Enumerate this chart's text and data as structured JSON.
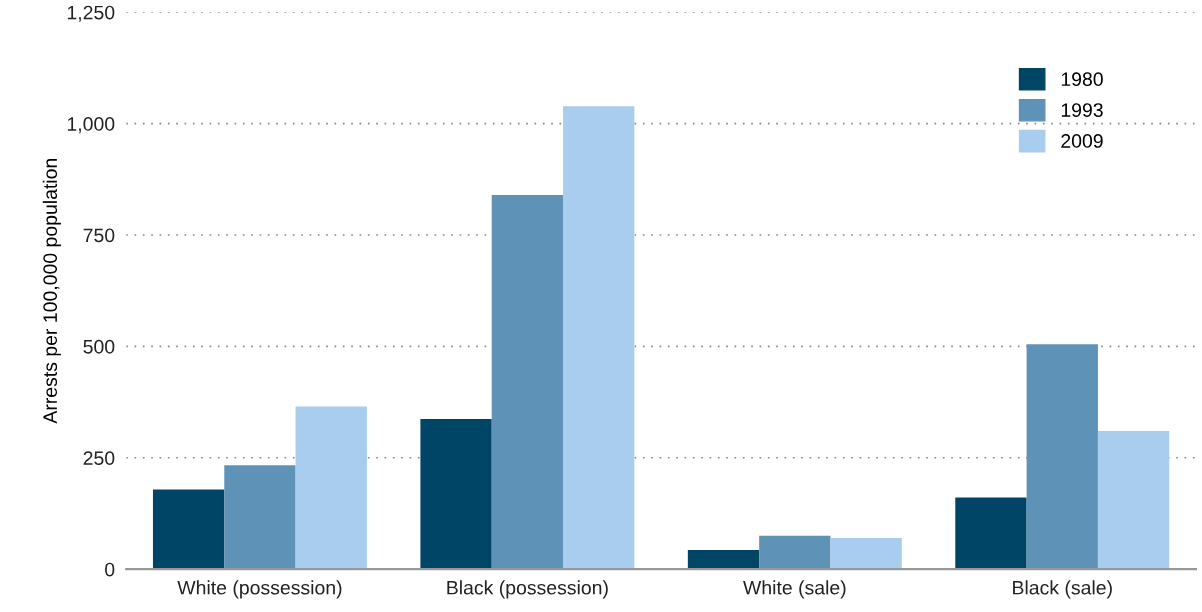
{
  "chart_data": {
    "type": "bar",
    "ylabel": "Arrests per 100,000 population",
    "categories": [
      "White (possession)",
      "Black (possession)",
      "White (sale)",
      "Black (sale)"
    ],
    "series": [
      {
        "name": "1980",
        "color": "#004466",
        "values": [
          179,
          337,
          43,
          161
        ]
      },
      {
        "name": "1993",
        "color": "#5e92b6",
        "values": [
          233,
          840,
          75,
          505
        ]
      },
      {
        "name": "2009",
        "color": "#a9cdee",
        "values": [
          365,
          1039,
          70,
          310
        ]
      }
    ],
    "ylim": [
      0,
      1250
    ],
    "yticks": [
      0,
      250,
      500,
      750,
      {
        "value": 1000,
        "label": "1,000"
      },
      {
        "value": 1250,
        "label": "1,250"
      }
    ],
    "grid": "y",
    "legend": "top right"
  }
}
